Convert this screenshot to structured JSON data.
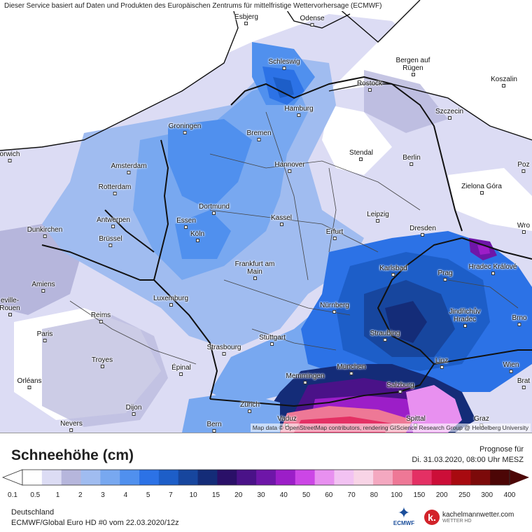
{
  "header": {
    "service_text": "Dieser Service basiert auf Daten und Produkten des Europäischen Zentrums für mittelfristige Wettervorhersage (ECMWF)"
  },
  "attribution": "Map data © OpenStreetMap contributors, rendering GIScience Research Group @ Heidelberg University",
  "cities": [
    {
      "name": "Esbjerg"
    },
    {
      "name": "Odense"
    },
    {
      "name": "Schleswig"
    },
    {
      "name": "Bergen auf Rügen"
    },
    {
      "name": "Rostock"
    },
    {
      "name": "Koszalin"
    },
    {
      "name": "Hamburg"
    },
    {
      "name": "Szczecin"
    },
    {
      "name": "Groningen"
    },
    {
      "name": "Bremen"
    },
    {
      "name": "orwich"
    },
    {
      "name": "Stendal"
    },
    {
      "name": "Berlin"
    },
    {
      "name": "Amsterdam"
    },
    {
      "name": "Hannover"
    },
    {
      "name": "Poz"
    },
    {
      "name": "Rotterdam"
    },
    {
      "name": "Zielona Góra"
    },
    {
      "name": "Dortmund"
    },
    {
      "name": "Dunkirchen"
    },
    {
      "name": "Antwerpen"
    },
    {
      "name": "Essen"
    },
    {
      "name": "Kassel"
    },
    {
      "name": "Leipzig"
    },
    {
      "name": "Wro"
    },
    {
      "name": "Erfurt"
    },
    {
      "name": "Dresden"
    },
    {
      "name": "Brüssel"
    },
    {
      "name": "Köln"
    },
    {
      "name": "Hradec Králové"
    },
    {
      "name": "Frankfurt am Main"
    },
    {
      "name": "Karlsbad"
    },
    {
      "name": "Prag"
    },
    {
      "name": "Amiens"
    },
    {
      "name": "Luxemburg"
    },
    {
      "name": "eville-Rouen"
    },
    {
      "name": "Nürnberg"
    },
    {
      "name": "Jindřichův Hradec"
    },
    {
      "name": "Brno"
    },
    {
      "name": "Reims"
    },
    {
      "name": "Paris"
    },
    {
      "name": "Straubing"
    },
    {
      "name": "Stuttgart"
    },
    {
      "name": "Strasbourg"
    },
    {
      "name": "Troyes"
    },
    {
      "name": "Linz"
    },
    {
      "name": "Wien"
    },
    {
      "name": "Épinal"
    },
    {
      "name": "München"
    },
    {
      "name": "Memmingen"
    },
    {
      "name": "Orléans"
    },
    {
      "name": "Brat"
    },
    {
      "name": "Salzburg"
    },
    {
      "name": "Dijon"
    },
    {
      "name": "Zürich"
    },
    {
      "name": "Vaduz"
    },
    {
      "name": "Nevers"
    },
    {
      "name": "Bern"
    },
    {
      "name": "Spittal"
    },
    {
      "name": "Graz"
    }
  ],
  "legend": {
    "title": "Schneehöhe (cm)",
    "forecast_label": "Prognose für",
    "forecast_date": "Di. 31.03.2020, 08:00 Uhr MESZ",
    "scale": [
      {
        "label": "0.1",
        "color": "#ffffff"
      },
      {
        "label": "0.5",
        "color": "#dcdcf4"
      },
      {
        "label": "1",
        "color": "#b6b6dc"
      },
      {
        "label": "2",
        "color": "#a0bcf0"
      },
      {
        "label": "3",
        "color": "#78a8f0"
      },
      {
        "label": "4",
        "color": "#5090ee"
      },
      {
        "label": "5",
        "color": "#2c72e6"
      },
      {
        "label": "7",
        "color": "#1d5ec8"
      },
      {
        "label": "10",
        "color": "#17469e"
      },
      {
        "label": "15",
        "color": "#142c78"
      },
      {
        "label": "20",
        "color": "#2a1068"
      },
      {
        "label": "30",
        "color": "#4a1288"
      },
      {
        "label": "40",
        "color": "#6e16a8"
      },
      {
        "label": "50",
        "color": "#9c1ec8"
      },
      {
        "label": "60",
        "color": "#cc46e6"
      },
      {
        "label": "70",
        "color": "#e890f0"
      },
      {
        "label": "80",
        "color": "#f2c2f2"
      },
      {
        "label": "100",
        "color": "#f8d4e6"
      },
      {
        "label": "150",
        "color": "#f4a8c0"
      },
      {
        "label": "200",
        "color": "#ee7896"
      },
      {
        "label": "250",
        "color": "#e43064"
      },
      {
        "label": "300",
        "color": "#cc0e38"
      },
      {
        "label": "400",
        "color": "#a80a10"
      },
      {
        "label": "",
        "color": "#7c0a0a"
      },
      {
        "label": "",
        "color": "#4c0606"
      }
    ]
  },
  "footer": {
    "region": "Deutschland",
    "model_run": "ECMWF/Global Euro HD #0 vom  22.03.2020/12z"
  },
  "logos": {
    "ecmwf": "ECMWF",
    "kachelmann": "kachelmannwetter.com",
    "kachelmann_sub": "WETTER HD",
    "kachelmann_badge": "k."
  }
}
